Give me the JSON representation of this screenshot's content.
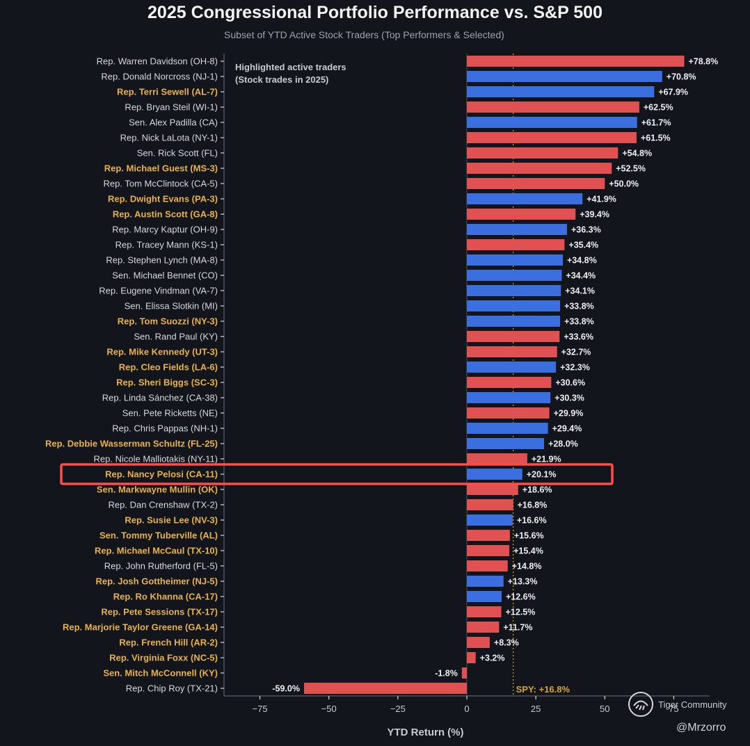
{
  "chart_data": {
    "type": "bar",
    "orientation": "horizontal",
    "title": "2025 Congressional Portfolio Performance vs. S&P 500",
    "subtitle": "Subset of YTD Active Stock Traders (Top Performers & Selected)",
    "xlabel": "YTD Return (%)",
    "ylabel": "",
    "xlim": [
      -88,
      88
    ],
    "xticks": [
      -75,
      -50,
      -25,
      0,
      25,
      50,
      75
    ],
    "xtick_labels": [
      "−75",
      "−50",
      "−25",
      "0",
      "25",
      "50",
      "75"
    ],
    "grid": false,
    "legend_note": [
      "Highlighted active traders",
      "(Stock trades in 2025)"
    ],
    "reference_line": {
      "value": 16.8,
      "label": "SPY: +16.8%",
      "color": "#d4a72c"
    },
    "highlight_box": "Rep. Nancy Pelosi (CA-11)",
    "colors": {
      "R": "#e05252",
      "D": "#3b6fe0",
      "label_normal": "#d7d9de",
      "label_highlighted": "#e8b24a",
      "background": "#12151c",
      "box": "#ff4d4d"
    },
    "categories": [
      "Rep. Warren Davidson (OH-8)",
      "Rep. Donald Norcross (NJ-1)",
      "Rep. Terri Sewell (AL-7)",
      "Rep. Bryan Steil (WI-1)",
      "Sen. Alex Padilla (CA)",
      "Rep. Nick LaLota (NY-1)",
      "Sen. Rick Scott (FL)",
      "Rep. Michael Guest (MS-3)",
      "Rep. Tom McClintock (CA-5)",
      "Rep. Dwight Evans (PA-3)",
      "Rep. Austin Scott (GA-8)",
      "Rep. Marcy Kaptur (OH-9)",
      "Rep. Tracey Mann (KS-1)",
      "Rep. Stephen Lynch (MA-8)",
      "Sen. Michael Bennet (CO)",
      "Rep. Eugene Vindman (VA-7)",
      "Sen. Elissa Slotkin (MI)",
      "Rep. Tom Suozzi (NY-3)",
      "Sen. Rand Paul (KY)",
      "Rep. Mike Kennedy (UT-3)",
      "Rep. Cleo Fields (LA-6)",
      "Rep. Sheri Biggs (SC-3)",
      "Rep. Linda Sánchez (CA-38)",
      "Sen. Pete Ricketts (NE)",
      "Rep. Chris Pappas (NH-1)",
      "Rep. Debbie Wasserman Schultz (FL-25)",
      "Rep. Nicole Malliotakis (NY-11)",
      "Rep. Nancy Pelosi (CA-11)",
      "Sen. Markwayne Mullin (OK)",
      "Rep. Dan Crenshaw (TX-2)",
      "Rep. Susie Lee (NV-3)",
      "Sen. Tommy Tuberville (AL)",
      "Rep. Michael McCaul (TX-10)",
      "Rep. John Rutherford (FL-5)",
      "Rep. Josh Gottheimer (NJ-5)",
      "Rep. Ro Khanna (CA-17)",
      "Rep. Pete Sessions (TX-17)",
      "Rep. Marjorie Taylor Greene (GA-14)",
      "Rep. French Hill (AR-2)",
      "Rep. Virginia Foxx (NC-5)",
      "Sen. Mitch McConnell (KY)",
      "Rep. Chip Roy (TX-21)"
    ],
    "values": [
      78.8,
      70.8,
      67.9,
      62.5,
      61.7,
      61.5,
      54.8,
      52.5,
      50.0,
      41.9,
      39.4,
      36.3,
      35.4,
      34.8,
      34.4,
      34.1,
      33.8,
      33.8,
      33.6,
      32.7,
      32.3,
      30.6,
      30.3,
      29.9,
      29.4,
      28.0,
      21.9,
      20.1,
      18.6,
      16.8,
      16.6,
      15.6,
      15.4,
      14.8,
      13.3,
      12.6,
      12.5,
      11.7,
      8.3,
      3.2,
      -1.8,
      -59.0
    ],
    "value_labels": [
      "+78.8%",
      "+70.8%",
      "+67.9%",
      "+62.5%",
      "+61.7%",
      "+61.5%",
      "+54.8%",
      "+52.5%",
      "+50.0%",
      "+41.9%",
      "+39.4%",
      "+36.3%",
      "+35.4%",
      "+34.8%",
      "+34.4%",
      "+34.1%",
      "+33.8%",
      "+33.8%",
      "+33.6%",
      "+32.7%",
      "+32.3%",
      "+30.6%",
      "+30.3%",
      "+29.9%",
      "+29.4%",
      "+28.0%",
      "+21.9%",
      "+20.1%",
      "+18.6%",
      "+16.8%",
      "+16.6%",
      "+15.6%",
      "+15.4%",
      "+14.8%",
      "+13.3%",
      "+12.6%",
      "+12.5%",
      "+11.7%",
      "+8.3%",
      "+3.2%",
      "-1.8%",
      "-59.0%"
    ],
    "party": [
      "R",
      "D",
      "D",
      "R",
      "D",
      "R",
      "R",
      "R",
      "R",
      "D",
      "R",
      "D",
      "R",
      "D",
      "D",
      "D",
      "D",
      "D",
      "R",
      "R",
      "D",
      "R",
      "D",
      "R",
      "D",
      "D",
      "R",
      "D",
      "R",
      "R",
      "D",
      "R",
      "R",
      "R",
      "D",
      "D",
      "R",
      "R",
      "R",
      "R",
      "R",
      "R"
    ],
    "highlighted": [
      false,
      false,
      true,
      false,
      false,
      false,
      false,
      true,
      false,
      true,
      true,
      false,
      false,
      false,
      false,
      false,
      false,
      true,
      false,
      true,
      true,
      true,
      false,
      false,
      false,
      true,
      false,
      true,
      true,
      false,
      true,
      true,
      true,
      false,
      true,
      true,
      true,
      true,
      true,
      true,
      true,
      false
    ]
  },
  "watermark": {
    "brand": "Tiger Community",
    "handle": "@Mrzorro",
    "logo_icon": "tiger-logo-icon"
  }
}
